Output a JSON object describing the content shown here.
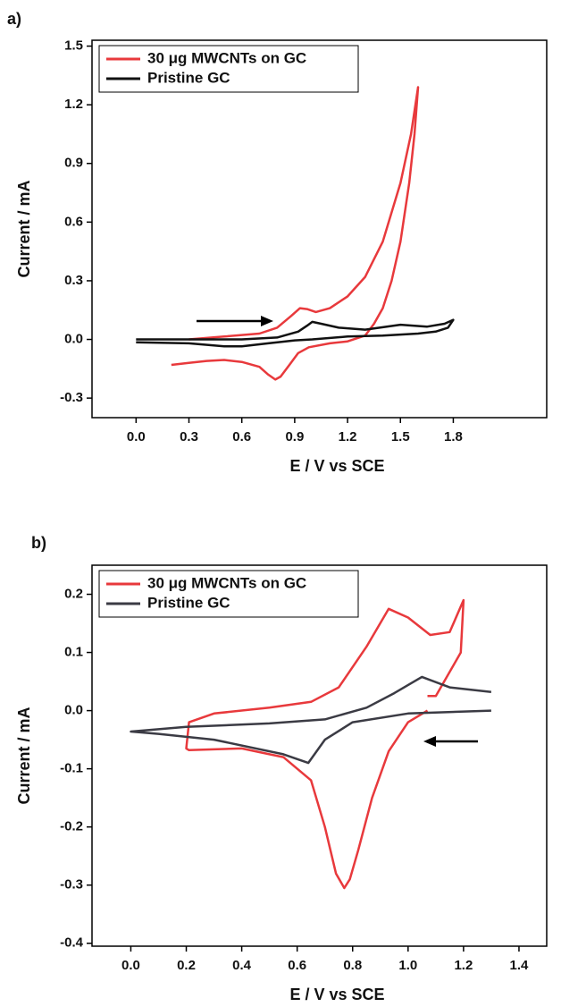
{
  "chart_data": [
    {
      "type": "line",
      "panel_label": "a)",
      "xlabel": "E / V vs SCE",
      "ylabel": "Current / mA",
      "xlim": [
        -0.25,
        2.33
      ],
      "ylim": [
        -0.4,
        1.53
      ],
      "xticks": [
        {
          "value": 0,
          "label": "0.0"
        },
        0.3,
        0.6,
        0.9,
        1.2,
        1.5,
        1.8
      ],
      "yticks": [
        -0.3,
        {
          "value": 0,
          "label": "0.0"
        },
        0.3,
        0.6,
        0.9,
        1.2,
        1.5
      ],
      "legend": "upper left",
      "series": [
        {
          "name": "30 μg MWCNTs on GC",
          "color": "#e8393c",
          "x": [
            0.3,
            0.5,
            0.7,
            0.8,
            0.88,
            0.93,
            0.97,
            1.02,
            1.1,
            1.2,
            1.3,
            1.4,
            1.5,
            1.56,
            1.6,
            1.58,
            1.55,
            1.5,
            1.45,
            1.4,
            1.35,
            1.3,
            1.2,
            1.1,
            0.98,
            0.92,
            0.87,
            0.82,
            0.79,
            0.75,
            0.7,
            0.6,
            0.5,
            0.4,
            0.3,
            0.2
          ],
          "values": [
            0.0,
            0.015,
            0.03,
            0.06,
            0.12,
            0.16,
            0.155,
            0.14,
            0.16,
            0.22,
            0.32,
            0.5,
            0.8,
            1.05,
            1.29,
            1.05,
            0.8,
            0.5,
            0.3,
            0.16,
            0.08,
            0.02,
            -0.01,
            -0.02,
            -0.04,
            -0.07,
            -0.13,
            -0.19,
            -0.205,
            -0.18,
            -0.14,
            -0.115,
            -0.105,
            -0.11,
            -0.12,
            -0.13
          ]
        },
        {
          "name": "Pristine GC",
          "color": "#111111",
          "x": [
            0.0,
            0.3,
            0.6,
            0.8,
            0.92,
            0.97,
            1.0,
            1.05,
            1.15,
            1.3,
            1.5,
            1.65,
            1.75,
            1.8,
            1.77,
            1.7,
            1.6,
            1.4,
            1.2,
            1.0,
            0.9,
            0.75,
            0.6,
            0.5,
            0.3,
            0.0
          ],
          "values": [
            0.0,
            0.0,
            0.0,
            0.01,
            0.04,
            0.07,
            0.09,
            0.08,
            0.06,
            0.05,
            0.075,
            0.065,
            0.08,
            0.1,
            0.06,
            0.04,
            0.03,
            0.02,
            0.015,
            0.0,
            -0.005,
            -0.02,
            -0.035,
            -0.035,
            -0.02,
            -0.015
          ]
        }
      ]
    },
    {
      "type": "line",
      "panel_label": "b)",
      "xlabel": "E / V vs SCE",
      "ylabel": "Current / mA",
      "xlim": [
        -0.14,
        1.5
      ],
      "ylim": [
        -0.405,
        0.25
      ],
      "xticks": [
        {
          "value": 0,
          "label": "0.0"
        },
        0.2,
        0.4,
        0.6,
        0.8,
        {
          "value": 1,
          "label": "1.0"
        },
        1.2,
        1.4
      ],
      "yticks": [
        -0.4,
        -0.3,
        -0.2,
        -0.1,
        {
          "value": 0,
          "label": "0.0"
        },
        0.1,
        0.2
      ],
      "legend": "upper left",
      "series": [
        {
          "name": "30 μg MWCNTs on GC",
          "color": "#e8393c",
          "x": [
            1.07,
            1.0,
            0.93,
            0.87,
            0.82,
            0.79,
            0.77,
            0.74,
            0.7,
            0.65,
            0.55,
            0.4,
            0.21,
            0.2,
            0.21,
            0.3,
            0.5,
            0.65,
            0.75,
            0.85,
            0.93,
            1.0,
            1.08,
            1.15,
            1.2,
            1.19,
            1.1,
            1.07
          ],
          "values": [
            0.0,
            -0.02,
            -0.07,
            -0.15,
            -0.24,
            -0.29,
            -0.305,
            -0.28,
            -0.2,
            -0.12,
            -0.08,
            -0.065,
            -0.068,
            -0.065,
            -0.02,
            -0.005,
            0.005,
            0.015,
            0.04,
            0.11,
            0.175,
            0.16,
            0.13,
            0.135,
            0.19,
            0.1,
            0.025,
            0.025
          ]
        },
        {
          "name": "Pristine GC",
          "color": "#3b3b44",
          "x": [
            1.3,
            1.0,
            0.8,
            0.7,
            0.64,
            0.55,
            0.3,
            0.1,
            0.0,
            0.2,
            0.5,
            0.7,
            0.85,
            0.95,
            1.05,
            1.15,
            1.3
          ],
          "values": [
            0.0,
            -0.005,
            -0.02,
            -0.05,
            -0.09,
            -0.075,
            -0.05,
            -0.04,
            -0.036,
            -0.028,
            -0.022,
            -0.015,
            0.005,
            0.03,
            0.058,
            0.04,
            0.032
          ]
        }
      ]
    }
  ]
}
